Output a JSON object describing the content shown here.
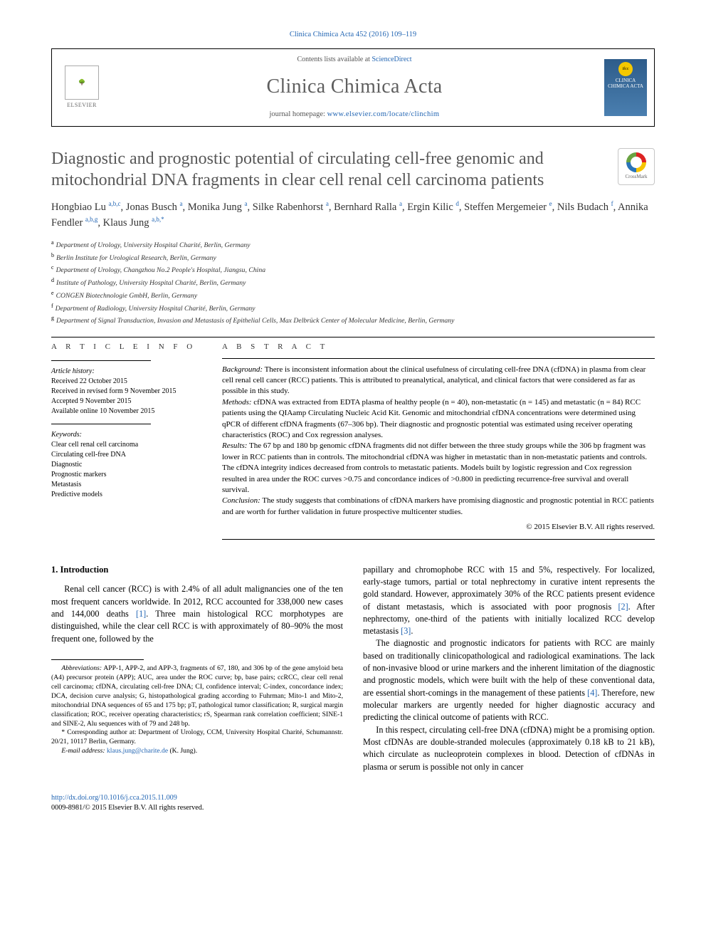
{
  "header": {
    "top_link": "Clinica Chimica Acta 452 (2016) 109–119",
    "contents_line_pre": "Contents lists available at ",
    "contents_line_link": "ScienceDirect",
    "journal_name": "Clinica Chimica Acta",
    "homepage_label": "journal homepage: ",
    "homepage_url": "www.elsevier.com/locate/clinchim",
    "elsevier_label": "ELSEVIER",
    "cover_text": "CLINICA CHIMICA ACTA"
  },
  "title": "Diagnostic and prognostic potential of circulating cell-free genomic and mitochondrial DNA fragments in clear cell renal cell carcinoma patients",
  "crossmark_label": "CrossMark",
  "authors_html": "Hongbiao Lu <span class=\"sup\">a,b,c</span>, Jonas Busch <span class=\"sup\">a</span>, Monika Jung <span class=\"sup\">a</span>, Silke Rabenhorst <span class=\"sup\">a</span>, Bernhard Ralla <span class=\"sup\">a</span>, Ergin Kilic <span class=\"sup\">d</span>, Steffen Mergemeier <span class=\"sup\">e</span>, Nils Budach <span class=\"sup\">f</span>, Annika Fendler <span class=\"sup\">a,b,g</span>, Klaus Jung <span class=\"sup\">a,b,</span><span class=\"sup\">*</span>",
  "affiliations": [
    {
      "k": "a",
      "t": "Department of Urology, University Hospital Charité, Berlin, Germany"
    },
    {
      "k": "b",
      "t": "Berlin Institute for Urological Research, Berlin, Germany"
    },
    {
      "k": "c",
      "t": "Department of Urology, Changzhou No.2 People's Hospital, Jiangsu, China"
    },
    {
      "k": "d",
      "t": "Institute of Pathology, University Hospital Charité, Berlin, Germany"
    },
    {
      "k": "e",
      "t": "CONGEN Biotechnologie GmbH, Berlin, Germany"
    },
    {
      "k": "f",
      "t": "Department of Radiology, University Hospital Charité, Berlin, Germany"
    },
    {
      "k": "g",
      "t": "Department of Signal Transduction, Invasion and Metastasis of Epithelial Cells, Max Delbrück Center of Molecular Medicine, Berlin, Germany"
    }
  ],
  "info": {
    "heading": "A R T I C L E   I N F O",
    "hist_label": "Article history:",
    "history": [
      "Received 22 October 2015",
      "Received in revised form 9 November 2015",
      "Accepted 9 November 2015",
      "Available online 10 November 2015"
    ],
    "kw_label": "Keywords:",
    "keywords": [
      "Clear cell renal cell carcinoma",
      "Circulating cell-free DNA",
      "Diagnostic",
      "Prognostic markers",
      "Metastasis",
      "Predictive models"
    ]
  },
  "abstract": {
    "heading": "A B S T R A C T",
    "background_label": "Background:",
    "background": " There is inconsistent information about the clinical usefulness of circulating cell-free DNA (cfDNA) in plasma from clear cell renal cell cancer (RCC) patients. This is attributed to preanalytical, analytical, and clinical factors that were considered as far as possible in this study.",
    "methods_label": "Methods:",
    "methods": " cfDNA was extracted from EDTA plasma of healthy people (n = 40), non-metastatic (n = 145) and metastatic (n = 84) RCC patients using the QIAamp Circulating Nucleic Acid Kit. Genomic and mitochondrial cfDNA concentrations were determined using qPCR of different cfDNA fragments (67–306 bp). Their diagnostic and prognostic potential was estimated using receiver operating characteristics (ROC) and Cox regression analyses.",
    "results_label": "Results:",
    "results": " The 67 bp and 180 bp genomic cfDNA fragments did not differ between the three study groups while the 306 bp fragment was lower in RCC patients than in controls. The mitochondrial cfDNA was higher in metastatic than in non-metastatic patients and controls. The cfDNA integrity indices decreased from controls to metastatic patients. Models built by logistic regression and Cox regression resulted in area under the ROC curves >0.75 and concordance indices of >0.800 in predicting recurrence-free survival and overall survival.",
    "conclusion_label": "Conclusion:",
    "conclusion": " The study suggests that combinations of cfDNA markers have promising diagnostic and prognostic potential in RCC patients and are worth for further validation in future prospective multicenter studies.",
    "copyright": "© 2015 Elsevier B.V. All rights reserved."
  },
  "section1": {
    "heading": "1. Introduction",
    "p1_a": "Renal cell cancer (RCC) is with 2.4% of all adult malignancies one of the ten most frequent cancers worldwide. In 2012, RCC accounted for 338,000 new cases and 144,000 deaths ",
    "p1_ref1": "[1]",
    "p1_b": ". Three main histological RCC morphotypes are distinguished, while the clear cell RCC is with approximately of 80–90% the most frequent one, followed by the",
    "p2_a": "papillary and chromophobe RCC with 15 and 5%, respectively. For localized, early-stage tumors, partial or total nephrectomy in curative intent represents the gold standard. However, approximately 30% of the RCC patients present evidence of distant metastasis, which is associated with poor prognosis ",
    "p2_ref2": "[2]",
    "p2_b": ". After nephrectomy, one-third of the patients with initially localized RCC develop metastasis ",
    "p2_ref3": "[3]",
    "p2_c": ".",
    "p3_a": "The diagnostic and prognostic indicators for patients with RCC are mainly based on traditionally clinicopathological and radiological examinations. The lack of non-invasive blood or urine markers and the inherent limitation of the diagnostic and prognostic models, which were built with the help of these conventional data, are essential short-comings in the management of these patients ",
    "p3_ref4": "[4]",
    "p3_b": ". Therefore, new molecular markers are urgently needed for higher diagnostic accuracy and predicting the clinical outcome of patients with RCC.",
    "p4": "In this respect, circulating cell-free DNA (cfDNA) might be a promising option. Most cfDNAs are double-stranded molecules (approximately 0.18 kB to 21 kB), which circulate as nucleoprotein complexes in blood. Detection of cfDNAs in plasma or serum is possible not only in cancer"
  },
  "footnotes": {
    "abbrev_label": "Abbreviations:",
    "abbrev": " APP-1, APP-2, and APP-3, fragments of 67, 180, and 306 bp of the gene amyloid beta (A4) precursor protein (APP); AUC, area under the ROC curve; bp, base pairs; ccRCC, clear cell renal cell carcinoma; cfDNA, circulating cell-free DNA; CI, confidence interval; C-index, concordance index; DCA, decision curve analysis; G, histopathological grading according to Fuhrman; Mito-1 and Mito-2, mitochondrial DNA sequences of 65 and 175 bp; pT, pathological tumor classification; R, surgical margin classification; ROC, receiver operating characteristics; rS, Spearman rank correlation coefficient; SINE-1 and SINE-2, Alu sequences with of 79 and 248 bp.",
    "corr_mark": "*",
    "corr": " Corresponding author at: Department of Urology, CCM, University Hospital Charité, Schumannstr. 20/21, 10117 Berlin, Germany.",
    "email_label": "E-mail address:",
    "email": "klaus.jung@charite.de",
    "email_after": " (K. Jung)."
  },
  "footer": {
    "doi": "http://dx.doi.org/10.1016/j.cca.2015.11.009",
    "issn_line": "0009-8981/© 2015 Elsevier B.V. All rights reserved."
  }
}
